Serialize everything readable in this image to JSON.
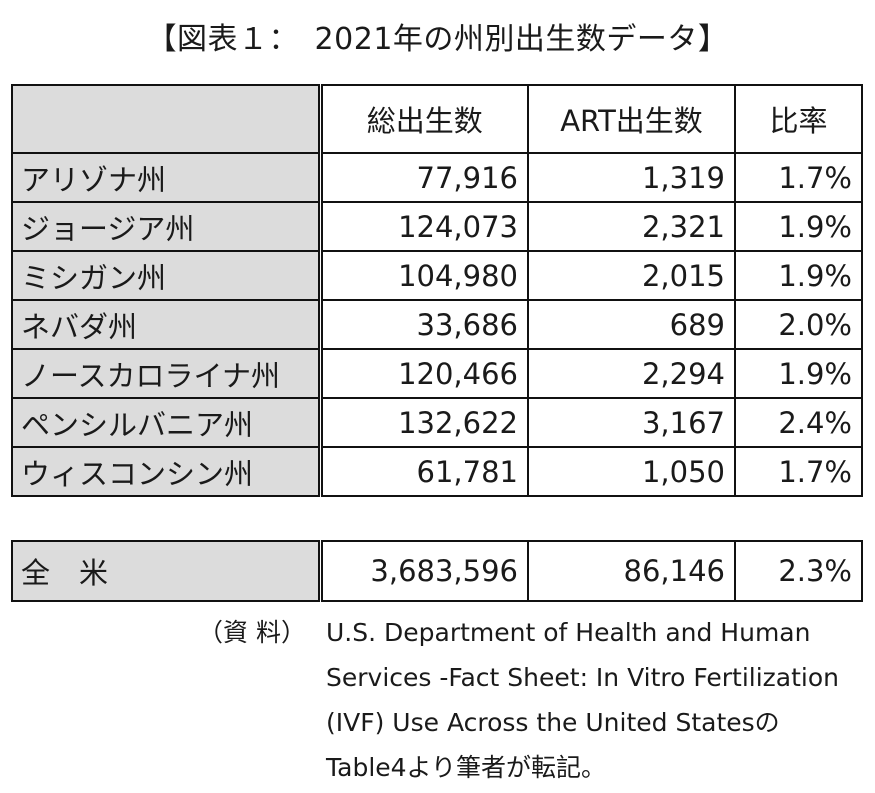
{
  "title": "【図表１：　2021年の州別出生数データ】",
  "table": {
    "headers": [
      "",
      "総出生数",
      "ART出生数",
      "比率"
    ],
    "rows": [
      {
        "state": "アリゾナ州",
        "total": "77,916",
        "art": "1,319",
        "ratio": "1.7%"
      },
      {
        "state": "ジョージア州",
        "total": "124,073",
        "art": "2,321",
        "ratio": "1.9%"
      },
      {
        "state": "ミシガン州",
        "total": "104,980",
        "art": "2,015",
        "ratio": "1.9%"
      },
      {
        "state": "ネバダ州",
        "total": "33,686",
        "art": "689",
        "ratio": "2.0%"
      },
      {
        "state": "ノースカロライナ州",
        "total": "120,466",
        "art": "2,294",
        "ratio": "1.9%"
      },
      {
        "state": "ペンシルバニア州",
        "total": "132,622",
        "art": "3,167",
        "ratio": "2.4%"
      },
      {
        "state": "ウィスコンシン州",
        "total": "61,781",
        "art": "1,050",
        "ratio": "1.7%"
      }
    ],
    "total": {
      "state": "全　米",
      "total": "3,683,596",
      "art": "86,146",
      "ratio": "2.3%"
    }
  },
  "source": {
    "label": "（資 料）",
    "lines": [
      "U.S. Department of Health and Human",
      "Services -Fact Sheet: In Vitro Fertilization",
      "(IVF) Use Across the United Statesの",
      "Table4より筆者が転記。"
    ]
  },
  "colors": {
    "label_bg": "#dcdcdc",
    "border": "#111111"
  }
}
